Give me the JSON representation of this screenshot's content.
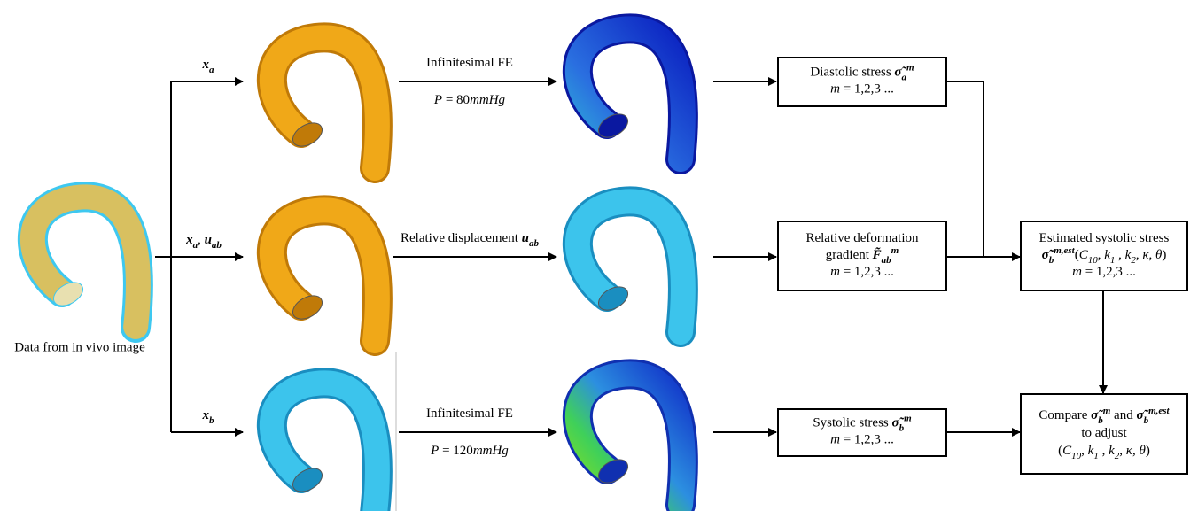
{
  "source": {
    "caption": "Data from in vivo image"
  },
  "rows": [
    {
      "input": [
        {
          "b": "x",
          "sub": "a"
        }
      ],
      "method": [
        "Infinitesimal FE"
      ],
      "condition": [
        {
          "v": "P"
        },
        " = 80",
        {
          "v": "mmHg"
        }
      ],
      "output": [
        [
          "Diastolic stress ",
          {
            "b": "σ̃",
            "sub": "a",
            "sup": "m"
          }
        ],
        [
          {
            "v": "m"
          },
          " = 1,2,3 ..."
        ]
      ]
    },
    {
      "input": [
        {
          "b": "x",
          "sub": "a"
        },
        ", ",
        {
          "b": "u",
          "sub": "ab"
        }
      ],
      "method": [
        "Relative displacement ",
        {
          "b": "u",
          "sub": "ab"
        }
      ],
      "output": [
        [
          "Relative deformation"
        ],
        [
          "gradient ",
          {
            "b": "F̃",
            "sub": "ab",
            "sup": "m"
          }
        ],
        [
          {
            "v": "m"
          },
          " = 1,2,3 ..."
        ]
      ]
    },
    {
      "input": [
        {
          "b": "x",
          "sub": "b"
        }
      ],
      "method": [
        "Infinitesimal FE"
      ],
      "condition": [
        {
          "v": "P"
        },
        " = 120",
        {
          "v": "mmHg"
        }
      ],
      "output": [
        [
          "Systolic stress ",
          {
            "b": "σ̃",
            "sub": "b",
            "sup": "m"
          }
        ],
        [
          {
            "v": "m"
          },
          " = 1,2,3 ..."
        ]
      ]
    }
  ],
  "estimate": [
    [
      "Estimated systolic stress"
    ],
    [
      {
        "b": "σ̃",
        "sub": "b",
        "sup": "m,est"
      },
      "(",
      {
        "v": "C",
        "sub": "10"
      },
      ", ",
      {
        "v": "k",
        "sub": "1"
      },
      " , ",
      {
        "v": "k",
        "sub": "2"
      },
      ", ",
      {
        "v": "κ"
      },
      ", ",
      {
        "v": "θ"
      },
      ")"
    ],
    [
      {
        "v": "m"
      },
      " = 1,2,3 ..."
    ]
  ],
  "compare": [
    [
      "Compare ",
      {
        "b": "σ̃",
        "sub": "b",
        "sup": "m"
      },
      " and ",
      {
        "b": "σ̃",
        "sub": "b",
        "sup": "m,est"
      }
    ],
    [
      "to adjust"
    ],
    [
      "(",
      {
        "v": "C",
        "sub": "10"
      },
      ", ",
      {
        "v": "k",
        "sub": "1"
      },
      " , ",
      {
        "v": "k",
        "sub": "2"
      },
      ", ",
      {
        "v": "κ"
      },
      ", ",
      {
        "v": "θ"
      },
      ")"
    ]
  ]
}
